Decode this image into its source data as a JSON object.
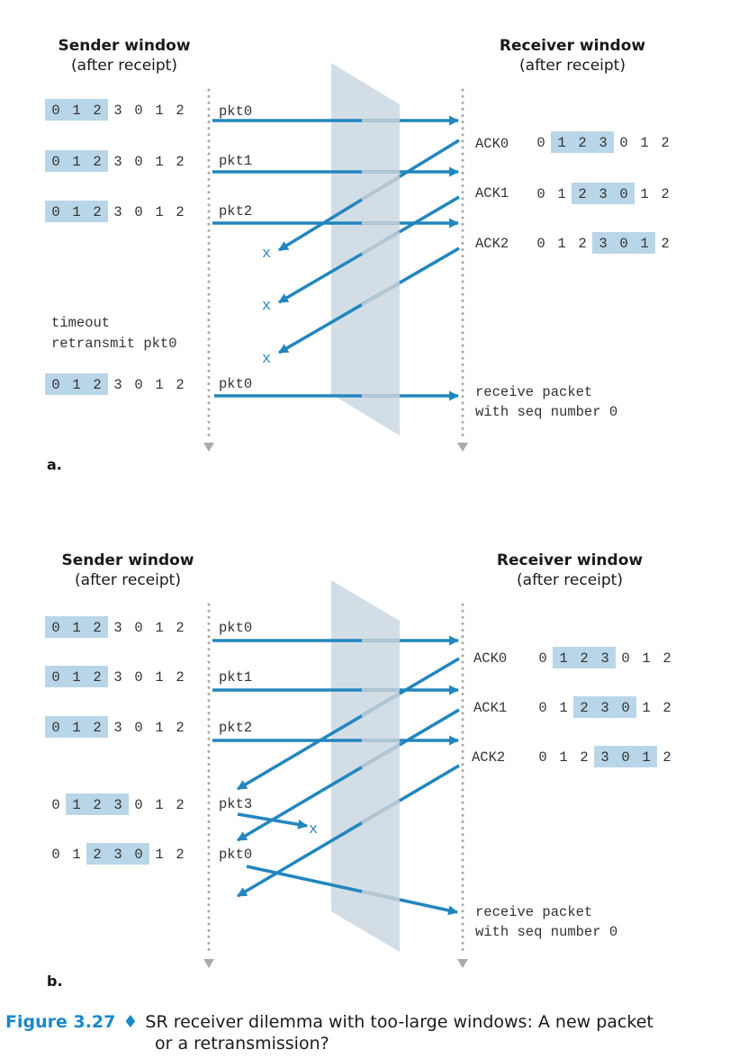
{
  "colors": {
    "arrow": "#2386be",
    "window_highlight": "#b9d5e8",
    "channel": "#d3dde6",
    "dots": "#aaaaaa"
  },
  "part_a": {
    "sender_header": [
      "Sender window",
      "(after receipt)"
    ],
    "receiver_header": [
      "Receiver window",
      "(after receipt)"
    ],
    "label": "a.",
    "sender_rows": [
      {
        "seq": [
          "0",
          "1",
          "2",
          "3",
          "0",
          "1",
          "2"
        ],
        "highlight": [
          0,
          2
        ]
      },
      {
        "seq": [
          "0",
          "1",
          "2",
          "3",
          "0",
          "1",
          "2"
        ],
        "highlight": [
          0,
          2
        ]
      },
      {
        "seq": [
          "0",
          "1",
          "2",
          "3",
          "0",
          "1",
          "2"
        ],
        "highlight": [
          0,
          2
        ]
      },
      {
        "seq": [
          "0",
          "1",
          "2",
          "3",
          "0",
          "1",
          "2"
        ],
        "highlight": [
          0,
          2
        ]
      }
    ],
    "receiver_rows": [
      {
        "ack": "ACK0",
        "seq": [
          "0",
          "1",
          "2",
          "3",
          "0",
          "1",
          "2"
        ],
        "highlight": [
          1,
          3
        ]
      },
      {
        "ack": "ACK1",
        "seq": [
          "0",
          "1",
          "2",
          "3",
          "0",
          "1",
          "2"
        ],
        "highlight": [
          2,
          4
        ]
      },
      {
        "ack": "ACK2",
        "seq": [
          "0",
          "1",
          "2",
          "3",
          "0",
          "1",
          "2"
        ],
        "highlight": [
          3,
          5
        ]
      }
    ],
    "packets": [
      "pkt0",
      "pkt1",
      "pkt2",
      "pkt0"
    ],
    "lost_marks": [
      "x",
      "x",
      "x"
    ],
    "timeout": [
      "timeout",
      "retransmit pkt0"
    ],
    "receive_note": [
      "receive packet",
      "with seq number 0"
    ]
  },
  "part_b": {
    "sender_header": [
      "Sender window",
      "(after receipt)"
    ],
    "receiver_header": [
      "Receiver window",
      "(after receipt)"
    ],
    "label": "b.",
    "sender_rows": [
      {
        "seq": [
          "0",
          "1",
          "2",
          "3",
          "0",
          "1",
          "2"
        ],
        "highlight": [
          0,
          2
        ]
      },
      {
        "seq": [
          "0",
          "1",
          "2",
          "3",
          "0",
          "1",
          "2"
        ],
        "highlight": [
          0,
          2
        ]
      },
      {
        "seq": [
          "0",
          "1",
          "2",
          "3",
          "0",
          "1",
          "2"
        ],
        "highlight": [
          0,
          2
        ]
      },
      {
        "seq": [
          "0",
          "1",
          "2",
          "3",
          "0",
          "1",
          "2"
        ],
        "highlight": [
          1,
          3
        ]
      },
      {
        "seq": [
          "0",
          "1",
          "2",
          "3",
          "0",
          "1",
          "2"
        ],
        "highlight": [
          2,
          4
        ]
      }
    ],
    "receiver_rows": [
      {
        "ack": "ACK0",
        "seq": [
          "0",
          "1",
          "2",
          "3",
          "0",
          "1",
          "2"
        ],
        "highlight": [
          1,
          3
        ]
      },
      {
        "ack": "ACK1",
        "seq": [
          "0",
          "1",
          "2",
          "3",
          "0",
          "1",
          "2"
        ],
        "highlight": [
          2,
          4
        ]
      },
      {
        "ack": "ACK2",
        "seq": [
          "0",
          "1",
          "2",
          "3",
          "0",
          "1",
          "2"
        ],
        "highlight": [
          3,
          5
        ]
      }
    ],
    "packets": [
      "pkt0",
      "pkt1",
      "pkt2",
      "pkt3",
      "pkt0"
    ],
    "lost_marks": [
      "x"
    ],
    "receive_note": [
      "receive packet",
      "with seq number 0"
    ]
  },
  "caption": {
    "figure_label": "Figure 3.27",
    "diamond": "♦",
    "line1": "SR receiver dilemma with too-large windows: A new packet",
    "line2": "or a retransmission?"
  }
}
